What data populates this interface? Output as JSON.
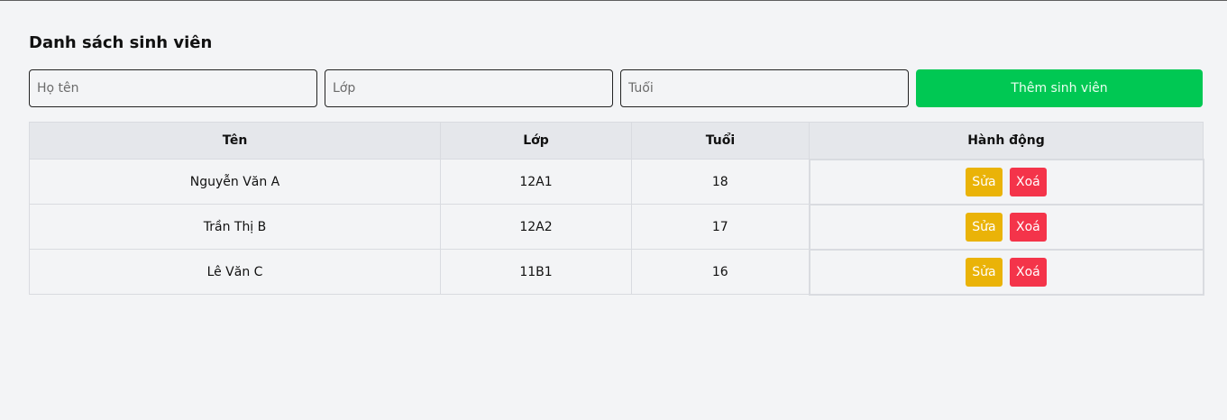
{
  "page": {
    "title": "Danh sách sinh viên"
  },
  "form": {
    "name_placeholder": "Họ tên",
    "class_placeholder": "Lớp",
    "age_placeholder": "Tuổi",
    "add_label": "Thêm sinh viên"
  },
  "table": {
    "headers": [
      "Tên",
      "Lớp",
      "Tuổi",
      "Hành động"
    ],
    "rows": [
      {
        "name": "Nguyễn Văn A",
        "class": "12A1",
        "age": "18",
        "edit_label": "Sửa",
        "delete_label": "Xoá"
      },
      {
        "name": "Trần Thị B",
        "class": "12A2",
        "age": "17",
        "edit_label": "Sửa",
        "delete_label": "Xoá"
      },
      {
        "name": "Lê Văn C",
        "class": "11B1",
        "age": "16",
        "edit_label": "Sửa",
        "delete_label": "Xoá"
      }
    ]
  },
  "colors": {
    "add": "#00c853",
    "edit": "#eab308",
    "delete": "#f4344a"
  }
}
